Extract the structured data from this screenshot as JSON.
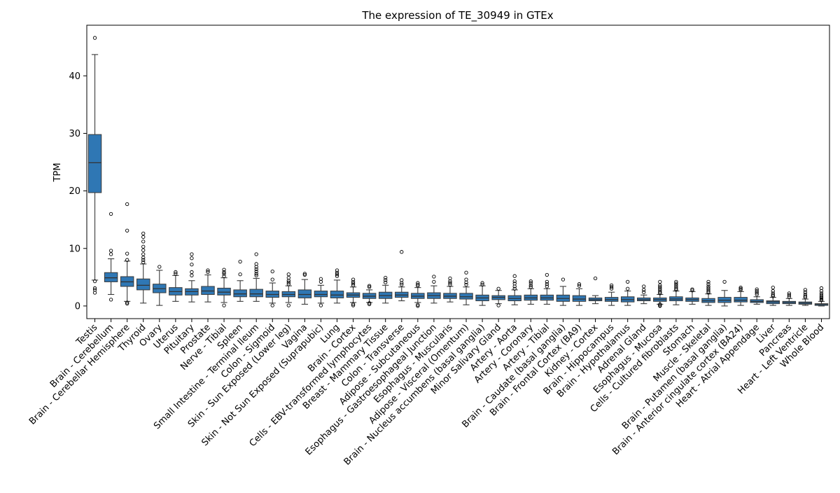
{
  "chart_data": {
    "type": "box",
    "title": "The expression of TE_30949 in GTEx",
    "xlabel": "",
    "ylabel": "TPM",
    "ylim": [
      -2.2,
      48.8
    ],
    "yticks": [
      0,
      10,
      20,
      30,
      40
    ],
    "grid": false,
    "legend": "none",
    "box_color": "#2f77b4",
    "median_color": "#333333",
    "categories": [
      "Testis",
      "Brain - Cerebellum",
      "Brain - Cerebellar Hemisphere",
      "Thyroid",
      "Ovary",
      "Uterus",
      "Pituitary",
      "Prostate",
      "Nerve - Tibial",
      "Spleen",
      "Small Intestine - Terminal Ileum",
      "Colon - Sigmoid",
      "Skin - Sun Exposed (Lower leg)",
      "Vagina",
      "Skin - Not Sun Exposed (Suprapubic)",
      "Lung",
      "Brain - Cortex",
      "Cells - EBV-transformed lymphocytes",
      "Breast - Mammary Tissue",
      "Colon - Transverse",
      "Adipose - Subcutaneous",
      "Esophagus - Gastroesophageal Junction",
      "Esophagus - Muscularis",
      "Adipose - Visceral (Omentum)",
      "Brain - Nucleus accumbens (basal ganglia)",
      "Minor Salivary Gland",
      "Artery - Aorta",
      "Artery - Coronary",
      "Artery - Tibial",
      "Brain - Caudate (basal ganglia)",
      "Brain - Frontal Cortex (BA9)",
      "Kidney - Cortex",
      "Brain - Hippocampus",
      "Brain - Hypothalamus",
      "Adrenal Gland",
      "Esophagus - Mucosa",
      "Cells - Cultured fibroblasts",
      "Stomach",
      "Muscle - Skeletal",
      "Brain - Putamen (basal ganglia)",
      "Brain - Anterior cingulate cortex (BA24)",
      "Heart - Atrial Appendage",
      "Liver",
      "Pancreas",
      "Heart - Left Ventricle",
      "Whole Blood"
    ],
    "boxes": [
      {
        "whislo": 4.5,
        "q1": 19.7,
        "med": 24.9,
        "q3": 29.8,
        "whishi": 43.7,
        "fliers": [
          46.6,
          4.3,
          3.1,
          2.8,
          2.3
        ]
      },
      {
        "whislo": 2.0,
        "q1": 4.2,
        "med": 4.9,
        "q3": 5.8,
        "whishi": 8.2,
        "fliers": [
          16.0,
          9.6,
          9.0,
          1.1
        ]
      },
      {
        "whislo": 0.8,
        "q1": 3.4,
        "med": 4.2,
        "q3": 5.1,
        "whishi": 7.8,
        "fliers": [
          17.7,
          13.1,
          9.1,
          8.0,
          0.6,
          0.4
        ]
      },
      {
        "whislo": 0.5,
        "q1": 2.8,
        "med": 3.6,
        "q3": 4.7,
        "whishi": 7.3,
        "fliers": [
          12.6,
          12.0,
          11.2,
          10.3,
          9.7,
          9.0,
          8.4,
          8.0,
          7.6
        ]
      },
      {
        "whislo": 0.1,
        "q1": 2.3,
        "med": 3.0,
        "q3": 3.8,
        "whishi": 6.2,
        "fliers": [
          6.8
        ]
      },
      {
        "whislo": 0.8,
        "q1": 1.9,
        "med": 2.5,
        "q3": 3.2,
        "whishi": 5.3,
        "fliers": [
          5.9,
          5.6
        ]
      },
      {
        "whislo": 0.7,
        "q1": 1.9,
        "med": 2.5,
        "q3": 3.0,
        "whishi": 4.4,
        "fliers": [
          9.0,
          8.3,
          7.2,
          5.9,
          5.3
        ]
      },
      {
        "whislo": 0.7,
        "q1": 2.0,
        "med": 2.6,
        "q3": 3.4,
        "whishi": 5.4,
        "fliers": [
          6.2,
          5.9
        ]
      },
      {
        "whislo": 0.6,
        "q1": 1.9,
        "med": 2.4,
        "q3": 3.1,
        "whishi": 4.9,
        "fliers": [
          6.3,
          5.9,
          5.6,
          5.2,
          0.1
        ]
      },
      {
        "whislo": 0.8,
        "q1": 1.6,
        "med": 2.1,
        "q3": 2.8,
        "whishi": 4.4,
        "fliers": [
          7.7,
          5.5
        ]
      },
      {
        "whislo": 0.8,
        "q1": 1.6,
        "med": 2.1,
        "q3": 2.9,
        "whishi": 4.8,
        "fliers": [
          9.0,
          7.3,
          6.8,
          6.4,
          6.0,
          5.6,
          5.3
        ]
      },
      {
        "whislo": 0.5,
        "q1": 1.5,
        "med": 2.0,
        "q3": 2.6,
        "whishi": 4.0,
        "fliers": [
          6.0,
          4.6,
          0.1
        ]
      },
      {
        "whislo": 0.6,
        "q1": 1.6,
        "med": 2.0,
        "q3": 2.5,
        "whishi": 3.5,
        "fliers": [
          5.5,
          4.9,
          4.4,
          4.1,
          3.8,
          0.1
        ]
      },
      {
        "whislo": 0.3,
        "q1": 1.4,
        "med": 2.0,
        "q3": 2.8,
        "whishi": 4.6,
        "fliers": [
          5.6,
          5.4
        ]
      },
      {
        "whislo": 0.5,
        "q1": 1.6,
        "med": 2.0,
        "q3": 2.6,
        "whishi": 3.6,
        "fliers": [
          4.7,
          4.2,
          0.1
        ]
      },
      {
        "whislo": 0.5,
        "q1": 1.4,
        "med": 1.9,
        "q3": 2.6,
        "whishi": 4.5,
        "fliers": [
          6.2,
          5.8,
          5.5,
          5.2
        ]
      },
      {
        "whislo": 0.6,
        "q1": 1.5,
        "med": 1.9,
        "q3": 2.3,
        "whishi": 3.3,
        "fliers": [
          4.6,
          4.2,
          3.9,
          3.6,
          0.3,
          0.1
        ]
      },
      {
        "whislo": 0.6,
        "q1": 1.3,
        "med": 1.7,
        "q3": 2.2,
        "whishi": 2.8,
        "fliers": [
          3.5,
          3.3,
          0.5,
          0.3
        ]
      },
      {
        "whislo": 0.5,
        "q1": 1.3,
        "med": 1.8,
        "q3": 2.4,
        "whishi": 3.6,
        "fliers": [
          4.9,
          4.5,
          4.1
        ]
      },
      {
        "whislo": 0.9,
        "q1": 1.5,
        "med": 1.9,
        "q3": 2.4,
        "whishi": 3.3,
        "fliers": [
          9.4,
          4.5,
          4.0,
          3.7
        ]
      },
      {
        "whislo": 0.6,
        "q1": 1.3,
        "med": 1.7,
        "q3": 2.2,
        "whishi": 3.2,
        "fliers": [
          4.0,
          3.7,
          3.5,
          0.2,
          0.0
        ]
      },
      {
        "whislo": 0.5,
        "q1": 1.3,
        "med": 1.8,
        "q3": 2.3,
        "whishi": 3.5,
        "fliers": [
          5.1,
          4.2
        ]
      },
      {
        "whislo": 0.7,
        "q1": 1.3,
        "med": 1.7,
        "q3": 2.2,
        "whishi": 3.4,
        "fliers": [
          4.8,
          4.3,
          4.0,
          3.7
        ]
      },
      {
        "whislo": 0.2,
        "q1": 1.2,
        "med": 1.6,
        "q3": 2.2,
        "whishi": 3.3,
        "fliers": [
          5.8,
          4.6,
          4.1,
          3.7
        ]
      },
      {
        "whislo": 0.1,
        "q1": 0.9,
        "med": 1.4,
        "q3": 1.9,
        "whishi": 3.5,
        "fliers": [
          4.0,
          3.7
        ]
      },
      {
        "whislo": 0.4,
        "q1": 1.1,
        "med": 1.5,
        "q3": 1.8,
        "whishi": 2.7,
        "fliers": [
          3.0,
          0.1
        ]
      },
      {
        "whislo": 0.2,
        "q1": 0.9,
        "med": 1.3,
        "q3": 1.8,
        "whishi": 2.8,
        "fliers": [
          5.2,
          4.3,
          3.9,
          3.4,
          3.0
        ]
      },
      {
        "whislo": 0.3,
        "q1": 1.0,
        "med": 1.4,
        "q3": 1.9,
        "whishi": 3.0,
        "fliers": [
          4.3,
          4.0,
          3.6,
          3.3
        ]
      },
      {
        "whislo": 0.3,
        "q1": 1.0,
        "med": 1.4,
        "q3": 1.9,
        "whishi": 3.0,
        "fliers": [
          5.4,
          4.2,
          3.8,
          3.4
        ]
      },
      {
        "whislo": 0.1,
        "q1": 0.8,
        "med": 1.3,
        "q3": 1.9,
        "whishi": 3.4,
        "fliers": [
          4.6
        ]
      },
      {
        "whislo": 0.1,
        "q1": 0.8,
        "med": 1.2,
        "q3": 1.8,
        "whishi": 3.0,
        "fliers": [
          3.8,
          3.5
        ]
      },
      {
        "whislo": 0.4,
        "q1": 0.9,
        "med": 1.1,
        "q3": 1.4,
        "whishi": 1.8,
        "fliers": [
          4.8
        ]
      },
      {
        "whislo": 0.1,
        "q1": 0.8,
        "med": 1.1,
        "q3": 1.5,
        "whishi": 2.4,
        "fliers": [
          3.6,
          3.3,
          3.0
        ]
      },
      {
        "whislo": 0.1,
        "q1": 0.7,
        "med": 1.1,
        "q3": 1.6,
        "whishi": 2.6,
        "fliers": [
          4.2,
          3.0
        ]
      },
      {
        "whislo": 0.4,
        "q1": 0.9,
        "med": 1.1,
        "q3": 1.4,
        "whishi": 1.9,
        "fliers": [
          3.4,
          2.8,
          2.4
        ]
      },
      {
        "whislo": 0.3,
        "q1": 0.8,
        "med": 1.1,
        "q3": 1.4,
        "whishi": 2.0,
        "fliers": [
          4.2,
          3.6,
          3.3,
          3.0,
          2.7,
          2.4,
          2.2,
          0.3,
          0.1,
          0.0
        ]
      },
      {
        "whislo": 0.2,
        "q1": 0.9,
        "med": 1.2,
        "q3": 1.6,
        "whishi": 2.6,
        "fliers": [
          4.2,
          3.9,
          3.6,
          3.3,
          3.0,
          2.8
        ]
      },
      {
        "whislo": 0.3,
        "q1": 0.8,
        "med": 1.1,
        "q3": 1.4,
        "whishi": 2.5,
        "fliers": [
          2.9,
          2.7
        ]
      },
      {
        "whislo": 0.1,
        "q1": 0.6,
        "med": 0.9,
        "q3": 1.3,
        "whishi": 2.1,
        "fliers": [
          4.2,
          3.8,
          3.4,
          3.1,
          2.8,
          2.5,
          2.3
        ]
      },
      {
        "whislo": 0.0,
        "q1": 0.6,
        "med": 1.0,
        "q3": 1.5,
        "whishi": 2.7,
        "fliers": [
          4.2
        ]
      },
      {
        "whislo": 0.1,
        "q1": 0.7,
        "med": 1.0,
        "q3": 1.5,
        "whishi": 2.5,
        "fliers": [
          3.2,
          3.0,
          2.8
        ]
      },
      {
        "whislo": 0.3,
        "q1": 0.6,
        "med": 0.8,
        "q3": 1.1,
        "whishi": 1.6,
        "fliers": [
          2.9,
          2.6,
          2.3,
          2.0
        ]
      },
      {
        "whislo": 0.1,
        "q1": 0.4,
        "med": 0.7,
        "q3": 0.9,
        "whishi": 1.5,
        "fliers": [
          3.2,
          2.6,
          2.2,
          1.9,
          1.7
        ]
      },
      {
        "whislo": 0.1,
        "q1": 0.4,
        "med": 0.6,
        "q3": 0.8,
        "whishi": 1.3,
        "fliers": [
          2.2,
          1.9,
          1.6
        ]
      },
      {
        "whislo": 0.1,
        "q1": 0.3,
        "med": 0.5,
        "q3": 0.7,
        "whishi": 1.2,
        "fliers": [
          2.8,
          2.4,
          2.0,
          1.7,
          1.5
        ]
      },
      {
        "whislo": 0.0,
        "q1": 0.1,
        "med": 0.3,
        "q3": 0.4,
        "whishi": 0.8,
        "fliers": [
          3.1,
          2.6,
          2.2,
          1.9,
          1.6,
          1.4,
          1.2,
          1.0
        ]
      }
    ]
  }
}
